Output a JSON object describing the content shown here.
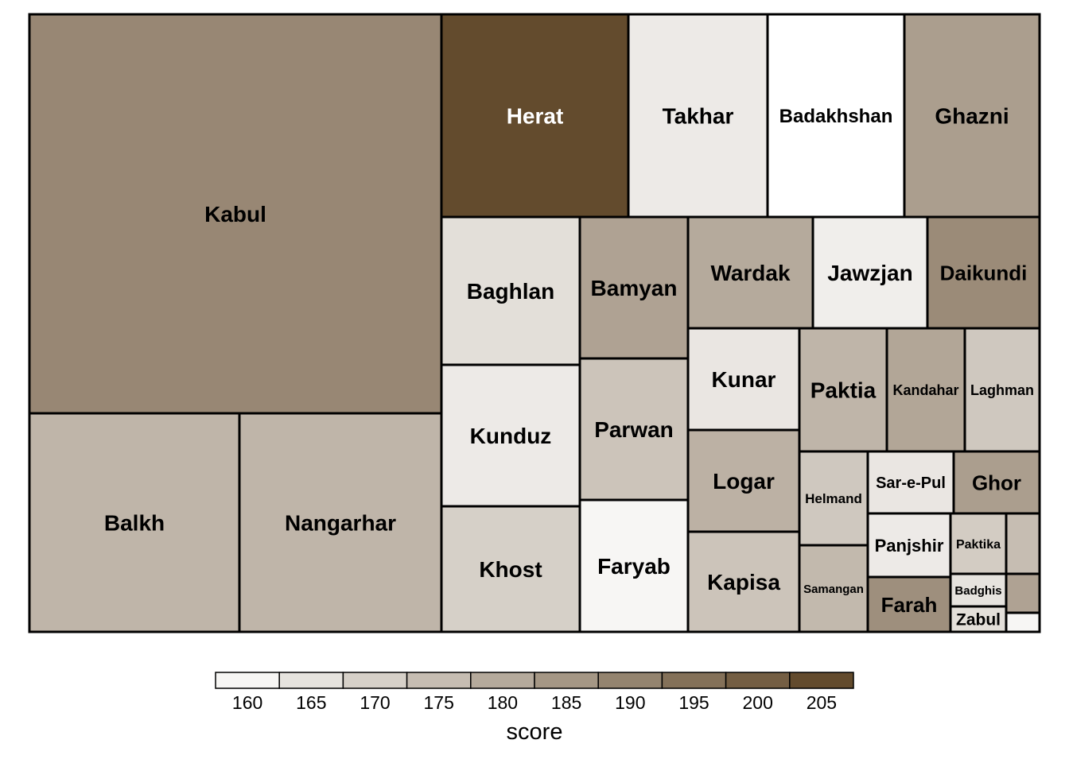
{
  "chart_data": {
    "type": "treemap",
    "title": "",
    "value_note": "",
    "colors": {
      "low": "#ffffff",
      "high": "#5b4122",
      "border": "#000000"
    },
    "legend": {
      "title": "score",
      "ticks": [
        "160",
        "165",
        "170",
        "175",
        "180",
        "185",
        "190",
        "195",
        "200",
        "205"
      ],
      "range": [
        157.5,
        207.5
      ],
      "step": 5
    },
    "tiles": [
      {
        "label": "Kabul",
        "score": 189
      },
      {
        "label": "Balkh",
        "score": 177
      },
      {
        "label": "Nangarhar",
        "score": 177
      },
      {
        "label": "Herat",
        "score": 205
      },
      {
        "label": "Takhar",
        "score": 163
      },
      {
        "label": "Badakhshan",
        "score": 157
      },
      {
        "label": "Ghazni",
        "score": 183
      },
      {
        "label": "Baghlan",
        "score": 166
      },
      {
        "label": "Bamyan",
        "score": 182
      },
      {
        "label": "Kunduz",
        "score": 163
      },
      {
        "label": "Parwan",
        "score": 173
      },
      {
        "label": "Khost",
        "score": 170
      },
      {
        "label": "Faryab",
        "score": 160
      },
      {
        "label": "Wardak",
        "score": 180
      },
      {
        "label": "Jawzjan",
        "score": 162
      },
      {
        "label": "Daikundi",
        "score": 188
      },
      {
        "label": "Kunar",
        "score": 164
      },
      {
        "label": "Logar",
        "score": 178
      },
      {
        "label": "Kapisa",
        "score": 173
      },
      {
        "label": "Paktia",
        "score": 177
      },
      {
        "label": "Kandahar",
        "score": 181
      },
      {
        "label": "Laghman",
        "score": 172
      },
      {
        "label": "Helmand",
        "score": 172
      },
      {
        "label": "Samangan",
        "score": 176
      },
      {
        "label": "Sar-e-Pul",
        "score": 164
      },
      {
        "label": "Ghor",
        "score": 183
      },
      {
        "label": "Panjshir",
        "score": 163
      },
      {
        "label": "Paktika",
        "score": 171
      },
      {
        "label": "",
        "score": 175
      },
      {
        "label": "Farah",
        "score": 187
      },
      {
        "label": "Badghis",
        "score": 165
      },
      {
        "label": "",
        "score": 182
      },
      {
        "label": "Zabul",
        "score": 166
      },
      {
        "label": "",
        "score": 160
      }
    ]
  }
}
